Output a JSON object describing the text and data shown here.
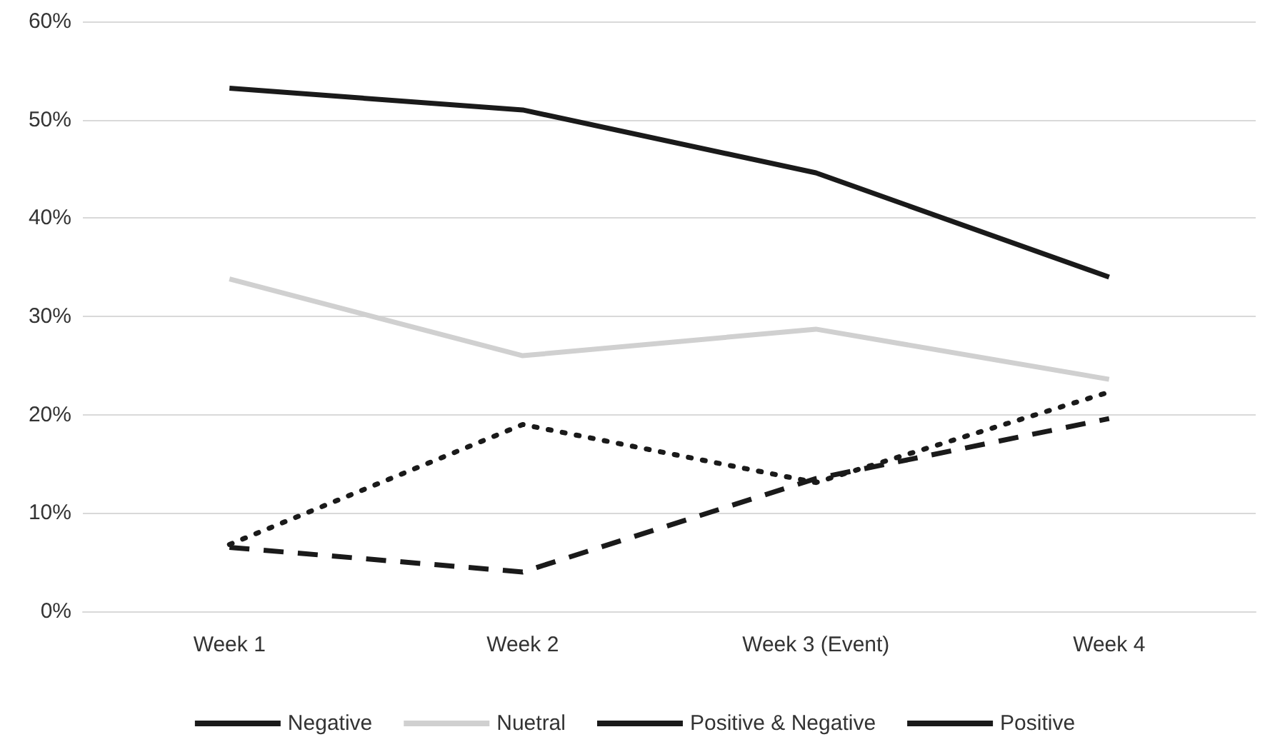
{
  "chart_data": {
    "type": "line",
    "categories": [
      "Week 1",
      "Week 2",
      "Week 3 (Event)",
      "Week 4"
    ],
    "series": [
      {
        "name": "Negative",
        "color": "#1a1a1a",
        "line_style": "solid",
        "values": [
          53.2,
          51.0,
          44.6,
          34.0
        ]
      },
      {
        "name": "Nuetral",
        "color": "#d0d0d0",
        "line_style": "solid",
        "values": [
          33.8,
          26.0,
          28.7,
          23.6
        ]
      },
      {
        "name": "Positive & Negative",
        "color": "#1a1a1a",
        "line_style": "dotted",
        "values": [
          6.8,
          19.0,
          13.1,
          22.3
        ]
      },
      {
        "name": "Positive",
        "color": "#1a1a1a",
        "line_style": "dashed",
        "values": [
          6.5,
          4.0,
          13.5,
          19.6
        ]
      }
    ],
    "ylim": [
      0,
      60
    ],
    "yticks": [
      {
        "value": 0,
        "label": "0%"
      },
      {
        "value": 10,
        "label": "10%"
      },
      {
        "value": 20,
        "label": "20%"
      },
      {
        "value": 30,
        "label": "30%"
      },
      {
        "value": 40,
        "label": "40%"
      },
      {
        "value": 50,
        "label": "50%"
      },
      {
        "value": 60,
        "label": "60%"
      }
    ],
    "grid": "y",
    "legend": "bottom",
    "marker": "none"
  }
}
